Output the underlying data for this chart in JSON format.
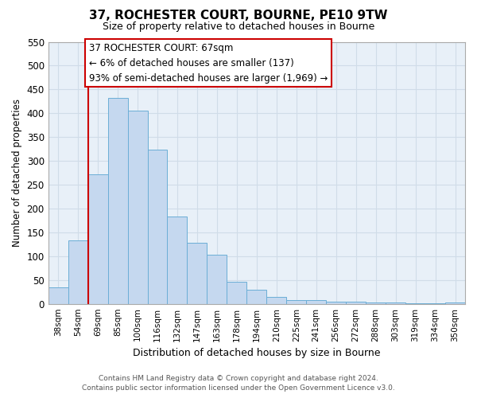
{
  "title": "37, ROCHESTER COURT, BOURNE, PE10 9TW",
  "subtitle": "Size of property relative to detached houses in Bourne",
  "xlabel": "Distribution of detached houses by size in Bourne",
  "ylabel": "Number of detached properties",
  "bar_labels": [
    "38sqm",
    "54sqm",
    "69sqm",
    "85sqm",
    "100sqm",
    "116sqm",
    "132sqm",
    "147sqm",
    "163sqm",
    "178sqm",
    "194sqm",
    "210sqm",
    "225sqm",
    "241sqm",
    "256sqm",
    "272sqm",
    "288sqm",
    "303sqm",
    "319sqm",
    "334sqm",
    "350sqm"
  ],
  "bar_values": [
    35,
    133,
    272,
    433,
    405,
    323,
    184,
    128,
    103,
    46,
    30,
    15,
    8,
    7,
    5,
    4,
    2,
    2,
    1,
    1,
    2
  ],
  "bar_color": "#c5d8ef",
  "bar_edge_color": "#6baed6",
  "vline_color": "#cc0000",
  "annotation_line1": "37 ROCHESTER COURT: 67sqm",
  "annotation_line2": "← 6% of detached houses are smaller (137)",
  "annotation_line3": "93% of semi-detached houses are larger (1,969) →",
  "annotation_box_color": "#ffffff",
  "annotation_box_edge": "#cc0000",
  "ylim": [
    0,
    550
  ],
  "yticks": [
    0,
    50,
    100,
    150,
    200,
    250,
    300,
    350,
    400,
    450,
    500,
    550
  ],
  "footer_line1": "Contains HM Land Registry data © Crown copyright and database right 2024.",
  "footer_line2": "Contains public sector information licensed under the Open Government Licence v3.0.",
  "bg_color": "#ffffff",
  "grid_color": "#d0dce8",
  "plot_bg_color": "#e8f0f8"
}
